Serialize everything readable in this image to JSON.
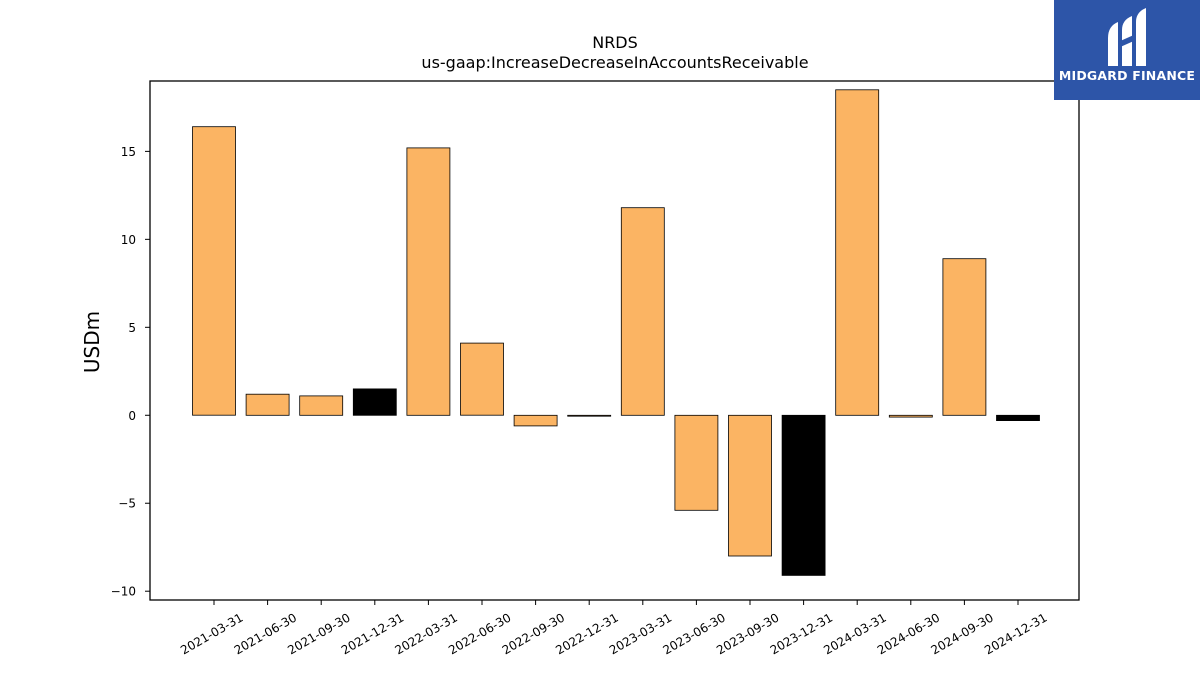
{
  "chart_data": {
    "type": "bar",
    "title": "NRDS",
    "subtitle": "us-gaap:IncreaseDecreaseInAccountsReceivable",
    "xlabel": "",
    "ylabel": "USDm",
    "ylim": [
      -10.5,
      19.0
    ],
    "yticks": [
      -10,
      -5,
      0,
      5,
      10,
      15
    ],
    "ytick_labels": [
      "−10",
      "−5",
      "0",
      "5",
      "10",
      "15"
    ],
    "categories": [
      "2021-03-31",
      "2021-06-30",
      "2021-09-30",
      "2021-12-31",
      "2022-03-31",
      "2022-06-30",
      "2022-09-30",
      "2022-12-31",
      "2023-03-31",
      "2023-06-30",
      "2023-09-30",
      "2023-12-31",
      "2024-03-31",
      "2024-06-30",
      "2024-09-30",
      "2024-12-31"
    ],
    "values": [
      16.4,
      1.2,
      1.1,
      1.5,
      15.2,
      4.1,
      -0.6,
      -0.05,
      11.8,
      -5.4,
      -8.0,
      -9.1,
      18.5,
      -0.1,
      8.9,
      -0.3
    ],
    "bar_colors": [
      "#fbb463",
      "#fbb463",
      "#fbb463",
      "#000000",
      "#fbb463",
      "#fbb463",
      "#fbb463",
      "#fbb463",
      "#fbb463",
      "#fbb463",
      "#fbb463",
      "#000000",
      "#fbb463",
      "#fbb463",
      "#fbb463",
      "#000000"
    ],
    "grid": false,
    "legend": "none"
  },
  "logo": {
    "brand_text": "MIDGARD FINANCE",
    "background_color": "#2d55a8"
  }
}
